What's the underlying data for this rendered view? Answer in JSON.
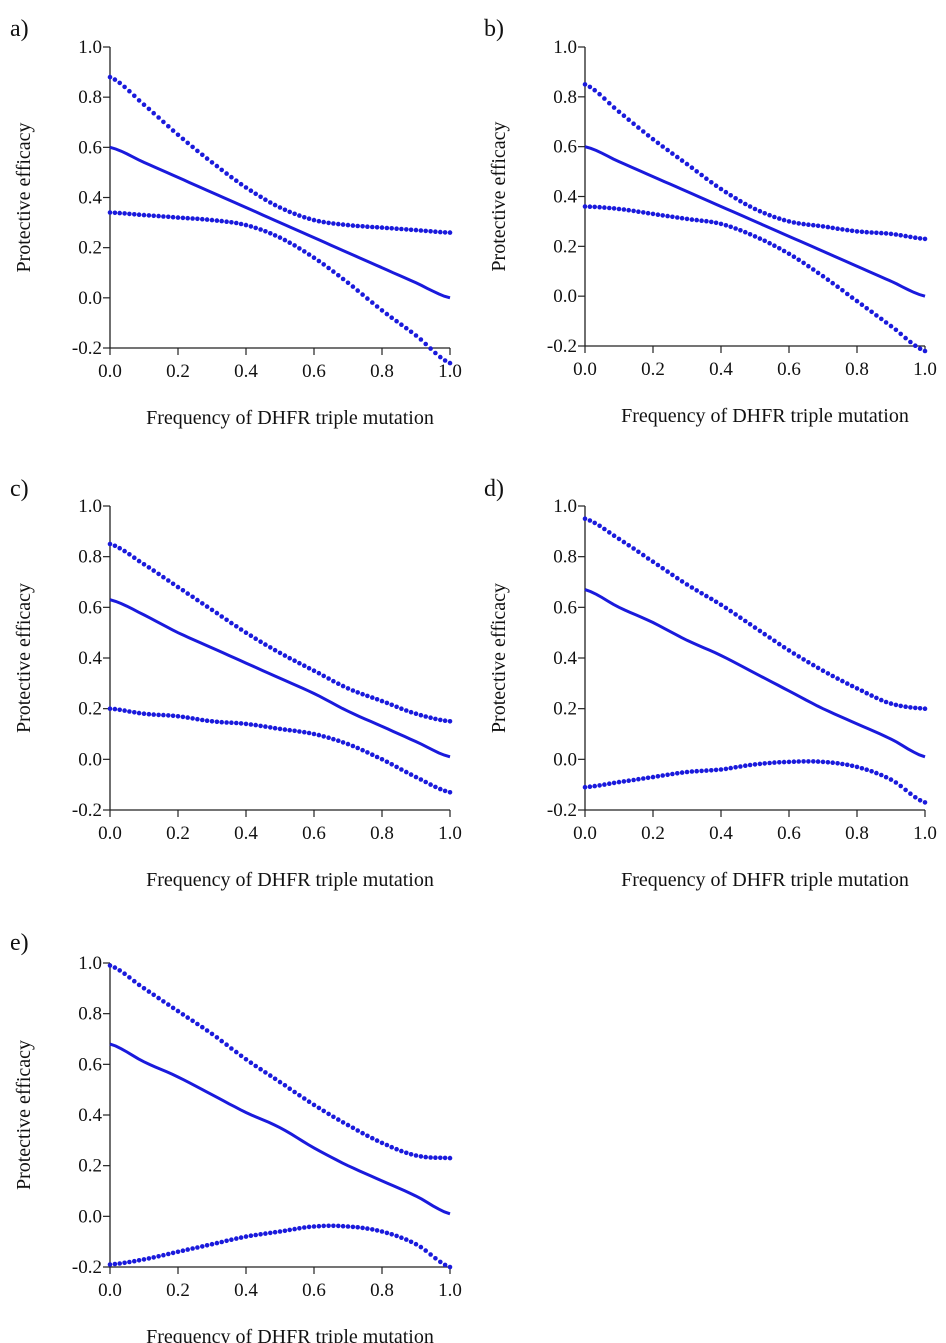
{
  "figure": {
    "x_axis_label": "Frequency of DHFR triple mutation",
    "y_axis_label": "Protective efficacy",
    "line_color": "#1a1adc"
  },
  "chart_data": [
    {
      "type": "line",
      "panel_label": "a)",
      "xlabel": "Frequency of DHFR triple mutation",
      "ylabel": "Protective efficacy",
      "xlim": [
        0,
        1
      ],
      "ylim": [
        -0.2,
        1.0
      ],
      "x_ticks": [
        "0.0",
        "0.2",
        "0.4",
        "0.6",
        "0.8",
        "1.0"
      ],
      "y_ticks": [
        "-0.2",
        "0.0",
        "0.2",
        "0.4",
        "0.6",
        "0.8",
        "1.0"
      ],
      "x": [
        0.0,
        0.1,
        0.2,
        0.3,
        0.4,
        0.5,
        0.6,
        0.7,
        0.8,
        0.9,
        1.0
      ],
      "series": [
        {
          "style": "solid",
          "values": [
            0.6,
            0.54,
            0.48,
            0.42,
            0.36,
            0.3,
            0.24,
            0.18,
            0.12,
            0.06,
            0.0
          ]
        },
        {
          "style": "dotted",
          "values": [
            0.88,
            0.77,
            0.65,
            0.54,
            0.44,
            0.36,
            0.31,
            0.29,
            0.28,
            0.27,
            0.26
          ]
        },
        {
          "style": "dotted",
          "values": [
            0.34,
            0.33,
            0.32,
            0.31,
            0.29,
            0.24,
            0.16,
            0.06,
            -0.05,
            -0.15,
            -0.26
          ]
        }
      ]
    },
    {
      "type": "line",
      "panel_label": "b)",
      "xlabel": "Frequency of DHFR triple mutation",
      "ylabel": "Protective efficacy",
      "xlim": [
        0,
        1
      ],
      "ylim": [
        -0.2,
        1.0
      ],
      "x_ticks": [
        "0.0",
        "0.2",
        "0.4",
        "0.6",
        "0.8",
        "1.0"
      ],
      "y_ticks": [
        "-0.2",
        "0.0",
        "0.2",
        "0.4",
        "0.6",
        "0.8",
        "1.0"
      ],
      "x": [
        0.0,
        0.1,
        0.2,
        0.3,
        0.4,
        0.5,
        0.6,
        0.7,
        0.8,
        0.9,
        1.0
      ],
      "series": [
        {
          "style": "solid",
          "values": [
            0.6,
            0.54,
            0.48,
            0.42,
            0.36,
            0.3,
            0.24,
            0.18,
            0.12,
            0.06,
            0.0
          ]
        },
        {
          "style": "dotted",
          "values": [
            0.85,
            0.74,
            0.63,
            0.53,
            0.43,
            0.35,
            0.3,
            0.28,
            0.26,
            0.25,
            0.23
          ]
        },
        {
          "style": "dotted",
          "values": [
            0.36,
            0.35,
            0.33,
            0.31,
            0.29,
            0.24,
            0.17,
            0.08,
            -0.02,
            -0.12,
            -0.22
          ]
        }
      ]
    },
    {
      "type": "line",
      "panel_label": "c)",
      "xlabel": "Frequency of DHFR triple mutation",
      "ylabel": "Protective efficacy",
      "xlim": [
        0,
        1
      ],
      "ylim": [
        -0.2,
        1.0
      ],
      "x_ticks": [
        "0.0",
        "0.2",
        "0.4",
        "0.6",
        "0.8",
        "1.0"
      ],
      "y_ticks": [
        "-0.2",
        "0.0",
        "0.2",
        "0.4",
        "0.6",
        "0.8",
        "1.0"
      ],
      "x": [
        0.0,
        0.1,
        0.2,
        0.3,
        0.4,
        0.5,
        0.6,
        0.7,
        0.8,
        0.9,
        1.0
      ],
      "series": [
        {
          "style": "solid",
          "values": [
            0.63,
            0.57,
            0.5,
            0.44,
            0.38,
            0.32,
            0.26,
            0.19,
            0.13,
            0.07,
            0.01
          ]
        },
        {
          "style": "dotted",
          "values": [
            0.85,
            0.77,
            0.68,
            0.59,
            0.5,
            0.42,
            0.35,
            0.28,
            0.23,
            0.18,
            0.15
          ]
        },
        {
          "style": "dotted",
          "values": [
            0.2,
            0.18,
            0.17,
            0.15,
            0.14,
            0.12,
            0.1,
            0.06,
            0.0,
            -0.07,
            -0.13
          ]
        }
      ]
    },
    {
      "type": "line",
      "panel_label": "d)",
      "xlabel": "Frequency of DHFR triple mutation",
      "ylabel": "Protective efficacy",
      "xlim": [
        0,
        1
      ],
      "ylim": [
        -0.2,
        1.0
      ],
      "x_ticks": [
        "0.0",
        "0.2",
        "0.4",
        "0.6",
        "0.8",
        "1.0"
      ],
      "y_ticks": [
        "-0.2",
        "0.0",
        "0.2",
        "0.4",
        "0.6",
        "0.8",
        "1.0"
      ],
      "x": [
        0.0,
        0.1,
        0.2,
        0.3,
        0.4,
        0.5,
        0.6,
        0.7,
        0.8,
        0.9,
        1.0
      ],
      "series": [
        {
          "style": "solid",
          "values": [
            0.67,
            0.6,
            0.54,
            0.47,
            0.41,
            0.34,
            0.27,
            0.2,
            0.14,
            0.08,
            0.01
          ]
        },
        {
          "style": "dotted",
          "values": [
            0.95,
            0.87,
            0.78,
            0.69,
            0.61,
            0.52,
            0.43,
            0.35,
            0.28,
            0.22,
            0.2
          ]
        },
        {
          "style": "dotted",
          "values": [
            -0.11,
            -0.09,
            -0.07,
            -0.05,
            -0.04,
            -0.02,
            -0.01,
            -0.01,
            -0.03,
            -0.08,
            -0.17
          ]
        }
      ]
    },
    {
      "type": "line",
      "panel_label": "e)",
      "xlabel": "Frequency of DHFR triple mutation",
      "ylabel": "Protective efficacy",
      "xlim": [
        0,
        1
      ],
      "ylim": [
        -0.2,
        1.0
      ],
      "x_ticks": [
        "0.0",
        "0.2",
        "0.4",
        "0.6",
        "0.8",
        "1.0"
      ],
      "y_ticks": [
        "-0.2",
        "0.0",
        "0.2",
        "0.4",
        "0.6",
        "0.8",
        "1.0"
      ],
      "x": [
        0.0,
        0.1,
        0.2,
        0.3,
        0.4,
        0.5,
        0.6,
        0.7,
        0.8,
        0.9,
        1.0
      ],
      "series": [
        {
          "style": "solid",
          "values": [
            0.68,
            0.61,
            0.55,
            0.48,
            0.41,
            0.35,
            0.27,
            0.2,
            0.14,
            0.08,
            0.01
          ]
        },
        {
          "style": "dotted",
          "values": [
            0.99,
            0.9,
            0.81,
            0.72,
            0.62,
            0.53,
            0.44,
            0.36,
            0.29,
            0.24,
            0.23
          ]
        },
        {
          "style": "dotted",
          "values": [
            -0.19,
            -0.17,
            -0.14,
            -0.11,
            -0.08,
            -0.06,
            -0.04,
            -0.04,
            -0.06,
            -0.11,
            -0.2
          ]
        }
      ]
    }
  ]
}
